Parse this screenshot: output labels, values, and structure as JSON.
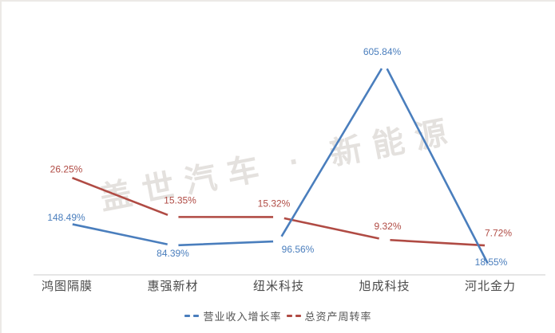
{
  "watermark": {
    "text": "盖世汽车 · 新能源",
    "color": "#e4e1de"
  },
  "chart_data": {
    "type": "line",
    "categories": [
      "鸿图隔膜",
      "惠强新材",
      "纽米科技",
      "旭成科技",
      "河北金力"
    ],
    "series": [
      {
        "key": "revenue-growth-rate",
        "name": "营业收入增长率",
        "color": "#4a7ebd",
        "axis": "left",
        "unit": "%",
        "values": [
          148.49,
          84.39,
          96.56,
          605.84,
          18.55
        ],
        "label_offsets": [
          [
            -1,
            -7
          ],
          [
            0,
            10
          ],
          [
            24,
            10
          ],
          [
            -3,
            -15
          ],
          [
            1,
            -8
          ]
        ]
      },
      {
        "key": "total-asset-turnover",
        "name": "总资产周转率",
        "color": "#b04b44",
        "axis": "right",
        "unit": "%",
        "values": [
          26.25,
          15.35,
          15.32,
          9.32,
          7.72
        ],
        "label_offsets": [
          [
            -1,
            -8
          ],
          [
            9,
            -21
          ],
          [
            -6,
            -17
          ],
          [
            4,
            -17
          ],
          [
            10,
            -16
          ]
        ]
      }
    ],
    "ylim_left": [
      0,
      693
    ],
    "ylim_right": [
      0,
      64
    ],
    "grid": false,
    "legend_position": "bottom",
    "axis_color": "#cccccc",
    "category_color": "#4a4a4a",
    "legend_text_color": "#555555"
  }
}
